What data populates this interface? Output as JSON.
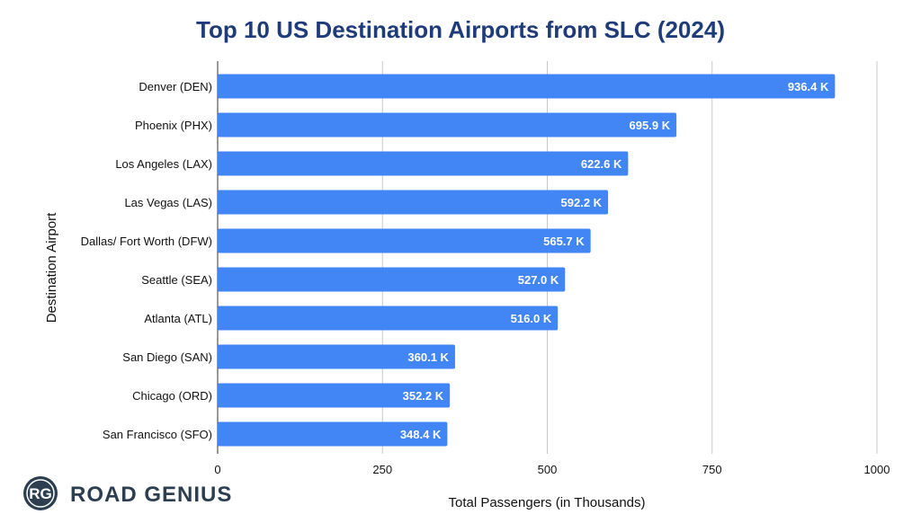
{
  "chart_data": {
    "type": "bar",
    "orientation": "horizontal",
    "title": "Top 10 US Destination Airports from SLC (2024)",
    "xlabel": "Total Passengers (in Thousands)",
    "ylabel": "Destination Airport",
    "xlim": [
      0,
      1000
    ],
    "x_ticks": [
      0,
      250,
      500,
      750,
      1000
    ],
    "grid": "vertical",
    "categories": [
      "Denver (DEN)",
      "Phoenix (PHX)",
      "Los Angeles (LAX)",
      "Las Vegas (LAS)",
      "Dallas/ Fort Worth (DFW)",
      "Seattle (SEA)",
      "Atlanta (ATL)",
      "San Diego (SAN)",
      "Chicago (ORD)",
      "San Francisco (SFO)"
    ],
    "values": [
      936.4,
      695.9,
      622.6,
      592.2,
      565.7,
      527.0,
      516.0,
      360.1,
      352.2,
      348.4
    ],
    "data_labels": [
      "936.4 K",
      "695.9 K",
      "622.6 K",
      "592.2 K",
      "565.7 K",
      "527.0 K",
      "516.0 K",
      "360.1 K",
      "352.2 K",
      "348.4 K"
    ],
    "bar_color": "#4285f4",
    "title_color": "#1f3b7a"
  },
  "logo": {
    "mark": "RG",
    "text": "ROAD GENIUS",
    "mark_color": "#2c3e50"
  }
}
